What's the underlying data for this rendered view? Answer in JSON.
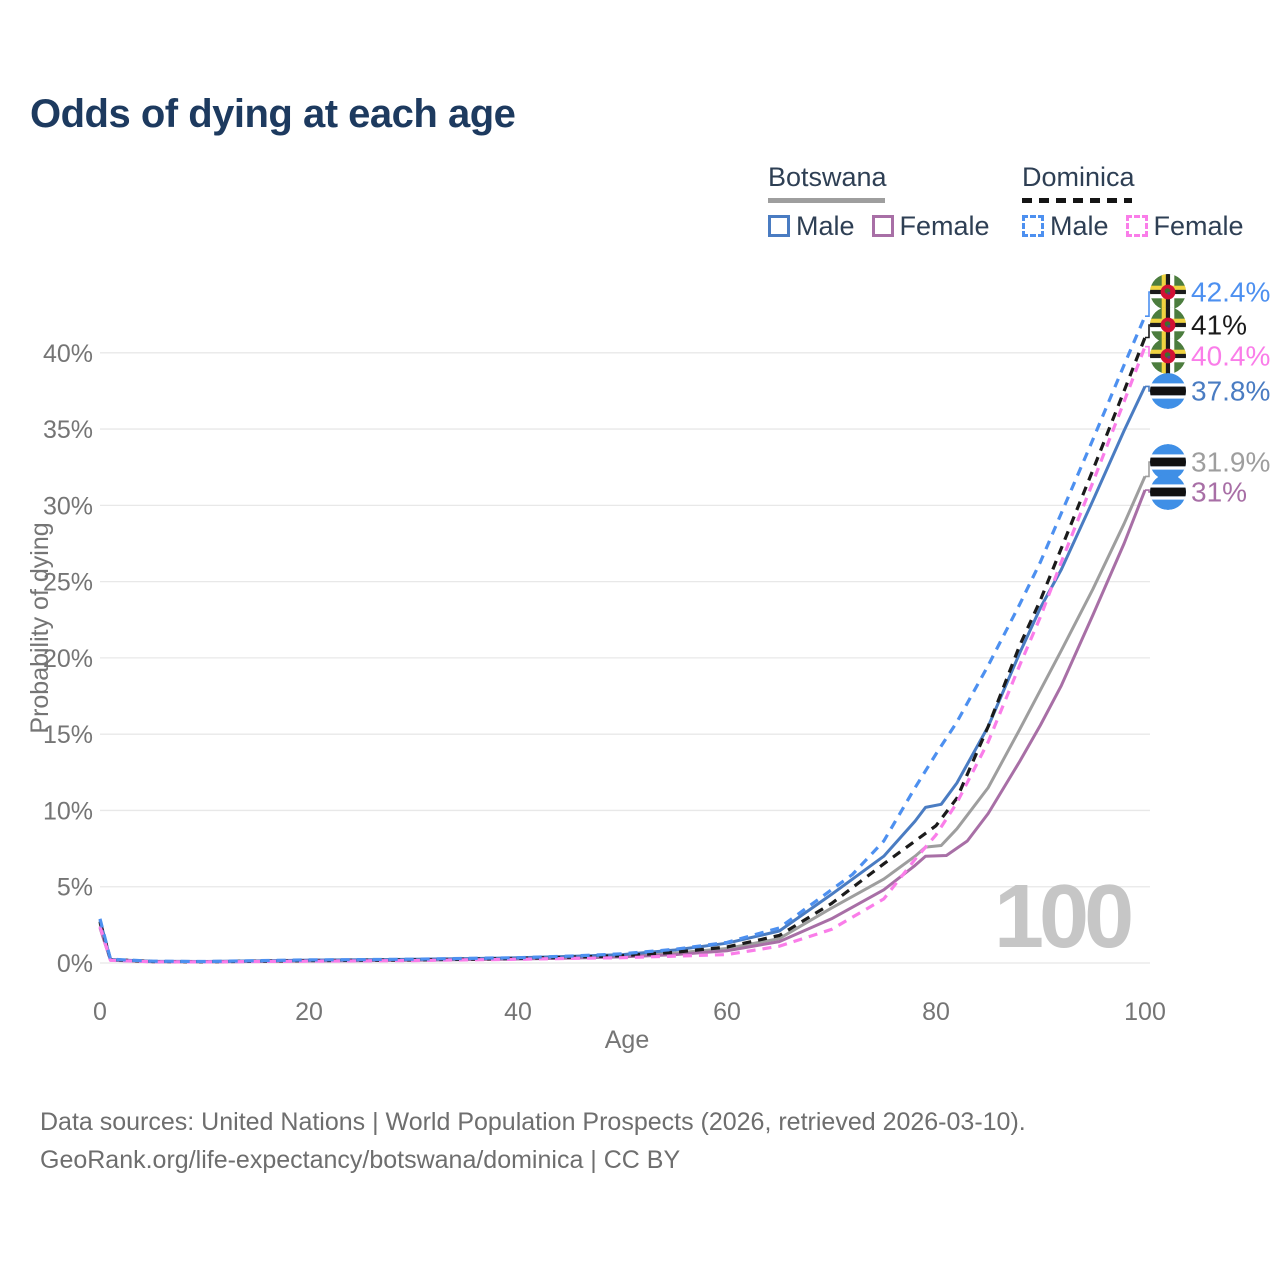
{
  "title": "Odds of dying at each age",
  "watermark": "100",
  "legend": {
    "groups": [
      {
        "name": "Botswana",
        "line_style": "solid",
        "underline_color": "#9e9e9e",
        "items": [
          {
            "label": "Male",
            "color": "#4a7cc2"
          },
          {
            "label": "Female",
            "color": "#a86fa6"
          }
        ]
      },
      {
        "name": "Dominica",
        "line_style": "dashed",
        "underline_color": "#151515",
        "items": [
          {
            "label": "Male",
            "color": "#4d90f0"
          },
          {
            "label": "Female",
            "color": "#fa7de9"
          }
        ]
      }
    ]
  },
  "axes": {
    "x": {
      "title": "Age",
      "min": 0,
      "max": 100,
      "ticks": [
        {
          "value": 0,
          "label": "0"
        },
        {
          "value": 20,
          "label": "20"
        },
        {
          "value": 40,
          "label": "40"
        },
        {
          "value": 60,
          "label": "60"
        },
        {
          "value": 80,
          "label": "80"
        },
        {
          "value": 100,
          "label": "100"
        }
      ]
    },
    "y": {
      "title": "Probability of dying",
      "min": 0,
      "max": 40,
      "format": "percent",
      "ticks": [
        {
          "value": 0,
          "label": "0%"
        },
        {
          "value": 5,
          "label": "5%"
        },
        {
          "value": 10,
          "label": "10%"
        },
        {
          "value": 15,
          "label": "15%"
        },
        {
          "value": 20,
          "label": "20%"
        },
        {
          "value": 25,
          "label": "25%"
        },
        {
          "value": 30,
          "label": "30%"
        },
        {
          "value": 35,
          "label": "35%"
        },
        {
          "value": 40,
          "label": "40%"
        }
      ]
    }
  },
  "chart_data": {
    "type": "line",
    "title": "Odds of dying at each age",
    "xlabel": "Age",
    "ylabel": "Probability of dying",
    "x_range": [
      0,
      100
    ],
    "y_range_pct": [
      0,
      44
    ],
    "grid": "horizontal-only",
    "series": [
      {
        "id": "dominica-male",
        "country": "Dominica",
        "sex": "male",
        "line": "dashed",
        "color": "#4d90f0",
        "flag": "dominica",
        "end_label": "42.4%",
        "end_value_pct": 42.4,
        "points": [
          [
            0,
            2.9
          ],
          [
            1,
            0.25
          ],
          [
            5,
            0.12
          ],
          [
            10,
            0.1
          ],
          [
            15,
            0.15
          ],
          [
            20,
            0.2
          ],
          [
            25,
            0.22
          ],
          [
            30,
            0.25
          ],
          [
            35,
            0.3
          ],
          [
            40,
            0.35
          ],
          [
            45,
            0.45
          ],
          [
            50,
            0.6
          ],
          [
            55,
            0.9
          ],
          [
            60,
            1.35
          ],
          [
            65,
            2.3
          ],
          [
            70,
            4.8
          ],
          [
            72,
            5.8
          ],
          [
            75,
            8
          ],
          [
            78,
            11.5
          ],
          [
            80,
            13.7
          ],
          [
            82,
            15.8
          ],
          [
            85,
            19.5
          ],
          [
            88,
            23.5
          ],
          [
            90,
            26.3
          ],
          [
            92,
            29.5
          ],
          [
            95,
            34.3
          ],
          [
            98,
            39.2
          ],
          [
            100,
            42.4
          ]
        ]
      },
      {
        "id": "dominica-both",
        "country": "Dominica",
        "sex": "both",
        "line": "dashed",
        "color": "#1b1b1b",
        "flag": "dominica",
        "end_label": "41%",
        "end_value_pct": 41,
        "points": [
          [
            0,
            2.7
          ],
          [
            1,
            0.22
          ],
          [
            5,
            0.1
          ],
          [
            10,
            0.08
          ],
          [
            15,
            0.12
          ],
          [
            20,
            0.16
          ],
          [
            25,
            0.18
          ],
          [
            30,
            0.2
          ],
          [
            35,
            0.25
          ],
          [
            40,
            0.3
          ],
          [
            45,
            0.38
          ],
          [
            50,
            0.48
          ],
          [
            55,
            0.7
          ],
          [
            60,
            1.05
          ],
          [
            65,
            1.8
          ],
          [
            70,
            3.9
          ],
          [
            75,
            6.5
          ],
          [
            78,
            8
          ],
          [
            80,
            9
          ],
          [
            82,
            10.8
          ],
          [
            85,
            15.5
          ],
          [
            88,
            20.8
          ],
          [
            90,
            23.8
          ],
          [
            92,
            27.2
          ],
          [
            95,
            32.3
          ],
          [
            98,
            37.5
          ],
          [
            100,
            41
          ]
        ]
      },
      {
        "id": "dominica-female",
        "country": "Dominica",
        "sex": "female",
        "line": "dashed",
        "color": "#fa7de9",
        "flag": "dominica",
        "end_label": "40.4%",
        "end_value_pct": 40.4,
        "points": [
          [
            0,
            2.4
          ],
          [
            1,
            0.18
          ],
          [
            5,
            0.08
          ],
          [
            10,
            0.07
          ],
          [
            15,
            0.1
          ],
          [
            20,
            0.12
          ],
          [
            25,
            0.14
          ],
          [
            30,
            0.16
          ],
          [
            35,
            0.2
          ],
          [
            40,
            0.24
          ],
          [
            45,
            0.3
          ],
          [
            50,
            0.35
          ],
          [
            55,
            0.45
          ],
          [
            60,
            0.55
          ],
          [
            65,
            1.1
          ],
          [
            70,
            2.2
          ],
          [
            75,
            4.2
          ],
          [
            78,
            6.8
          ],
          [
            80,
            8.4
          ],
          [
            82,
            10.5
          ],
          [
            85,
            14.5
          ],
          [
            88,
            19.5
          ],
          [
            90,
            22.7
          ],
          [
            92,
            26.3
          ],
          [
            95,
            31.5
          ],
          [
            98,
            36.8
          ],
          [
            100,
            40.4
          ]
        ]
      },
      {
        "id": "botswana-male",
        "country": "Botswana",
        "sex": "male",
        "line": "solid",
        "color": "#4a7cc2",
        "flag": "botswana",
        "end_label": "37.8%",
        "end_value_pct": 37.8,
        "points": [
          [
            0,
            2.8
          ],
          [
            1,
            0.23
          ],
          [
            5,
            0.11
          ],
          [
            10,
            0.1
          ],
          [
            15,
            0.14
          ],
          [
            20,
            0.19
          ],
          [
            25,
            0.21
          ],
          [
            30,
            0.24
          ],
          [
            35,
            0.29
          ],
          [
            40,
            0.34
          ],
          [
            45,
            0.43
          ],
          [
            50,
            0.55
          ],
          [
            55,
            0.85
          ],
          [
            60,
            1.3
          ],
          [
            65,
            2.1
          ],
          [
            70,
            4.5
          ],
          [
            75,
            7
          ],
          [
            78,
            9.3
          ],
          [
            79,
            10.2
          ],
          [
            80.5,
            10.4
          ],
          [
            82,
            11.8
          ],
          [
            85,
            15.5
          ],
          [
            88,
            20.3
          ],
          [
            90,
            23.3
          ],
          [
            92,
            25.8
          ],
          [
            95,
            30.3
          ],
          [
            98,
            34.9
          ],
          [
            100,
            37.8
          ]
        ]
      },
      {
        "id": "botswana-both",
        "country": "Botswana",
        "sex": "both",
        "line": "solid",
        "color": "#9e9e9e",
        "flag": "botswana",
        "end_label": "31.9%",
        "end_value_pct": 31.9,
        "points": [
          [
            0,
            2.6
          ],
          [
            1,
            0.21
          ],
          [
            5,
            0.09
          ],
          [
            10,
            0.08
          ],
          [
            15,
            0.12
          ],
          [
            20,
            0.16
          ],
          [
            25,
            0.18
          ],
          [
            30,
            0.2
          ],
          [
            35,
            0.25
          ],
          [
            40,
            0.3
          ],
          [
            45,
            0.38
          ],
          [
            50,
            0.45
          ],
          [
            55,
            0.65
          ],
          [
            60,
            0.95
          ],
          [
            65,
            1.6
          ],
          [
            70,
            3.6
          ],
          [
            75,
            5.5
          ],
          [
            78,
            7
          ],
          [
            79,
            7.6
          ],
          [
            80.5,
            7.7
          ],
          [
            82,
            8.8
          ],
          [
            85,
            11.5
          ],
          [
            88,
            15.3
          ],
          [
            90,
            17.9
          ],
          [
            92,
            20.5
          ],
          [
            95,
            24.5
          ],
          [
            98,
            28.8
          ],
          [
            100,
            31.9
          ]
        ]
      },
      {
        "id": "botswana-female",
        "country": "Botswana",
        "sex": "female",
        "line": "solid",
        "color": "#a86fa6",
        "flag": "botswana",
        "end_label": "31%",
        "end_value_pct": 31,
        "points": [
          [
            0,
            2.3
          ],
          [
            1,
            0.18
          ],
          [
            5,
            0.08
          ],
          [
            10,
            0.07
          ],
          [
            15,
            0.1
          ],
          [
            20,
            0.13
          ],
          [
            25,
            0.15
          ],
          [
            30,
            0.18
          ],
          [
            35,
            0.22
          ],
          [
            40,
            0.26
          ],
          [
            45,
            0.32
          ],
          [
            50,
            0.4
          ],
          [
            55,
            0.55
          ],
          [
            60,
            0.8
          ],
          [
            65,
            1.4
          ],
          [
            70,
            2.9
          ],
          [
            75,
            4.8
          ],
          [
            78,
            6.4
          ],
          [
            79,
            7
          ],
          [
            81,
            7.05
          ],
          [
            83,
            8
          ],
          [
            85,
            9.8
          ],
          [
            88,
            13.2
          ],
          [
            90,
            15.6
          ],
          [
            92,
            18.2
          ],
          [
            95,
            22.8
          ],
          [
            98,
            27.5
          ],
          [
            100,
            31
          ]
        ]
      }
    ]
  },
  "flag_colors": {
    "botswana": {
      "blue": "#3f8fe6",
      "black": "#111111",
      "white": "#ffffff"
    },
    "dominica": {
      "green": "#4c7d3e",
      "yellow": "#f0d340",
      "black": "#1b1b1b",
      "white": "#ffffff",
      "red": "#d21034",
      "parrot_green": "#3e6f2d",
      "parrot_purple": "#5c3a85"
    }
  },
  "source": {
    "line1": "Data sources: United Nations | World Population Prospects (2026, retrieved 2026-03-10).",
    "line2": "GeoRank.org/life-expectancy/botswana/dominica | CC BY"
  }
}
